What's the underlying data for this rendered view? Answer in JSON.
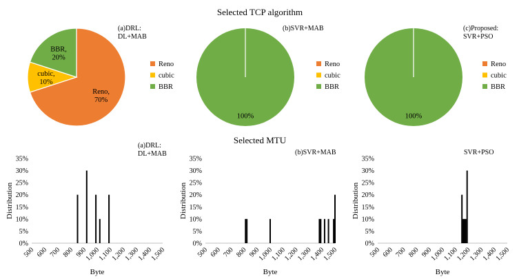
{
  "titles": {
    "top": "Selected TCP algorithm",
    "bottom": "Selected MTU"
  },
  "legend": {
    "entries": [
      {
        "name": "Reno",
        "color": "#ED7D31"
      },
      {
        "name": "cubic",
        "color": "#FFC000"
      },
      {
        "name": "BBR",
        "color": "#70AD47"
      }
    ]
  },
  "chart_data": [
    {
      "type": "pie",
      "annotation": [
        "(a)DRL:",
        "DL+MAB"
      ],
      "slices": [
        {
          "name": "Reno",
          "value": 70,
          "label": [
            "Reno,",
            "70%"
          ],
          "color": "#ED7D31"
        },
        {
          "name": "cubic",
          "value": 10,
          "label": [
            "cubic,",
            "10%"
          ],
          "color": "#FFC000"
        },
        {
          "name": "BBR",
          "value": 20,
          "label": [
            "BBR,",
            "20%"
          ],
          "color": "#70AD47"
        }
      ],
      "legend_position": "right"
    },
    {
      "type": "pie",
      "annotation": [
        "(b)SVR+MAB"
      ],
      "slices": [
        {
          "name": "Reno",
          "value": 0,
          "color": "#ED7D31"
        },
        {
          "name": "cubic",
          "value": 0,
          "color": "#FFC000"
        },
        {
          "name": "BBR",
          "value": 100,
          "label": [
            "100%"
          ],
          "color": "#70AD47"
        }
      ],
      "legend_position": "right"
    },
    {
      "type": "pie",
      "annotation": [
        "(c)Proposed:",
        "SVR+PSO"
      ],
      "slices": [
        {
          "name": "Reno",
          "value": 0,
          "color": "#ED7D31"
        },
        {
          "name": "cubic",
          "value": 0,
          "color": "#FFC000"
        },
        {
          "name": "BBR",
          "value": 100,
          "label": [
            "100%"
          ],
          "color": "#70AD47"
        }
      ],
      "legend_position": "right"
    },
    {
      "type": "bar",
      "annotation": [
        "(a)DRL:",
        "DL+MAB"
      ],
      "xlabel": "Byte",
      "ylabel": "Distribution",
      "xlim": [
        500,
        1500
      ],
      "ylim": [
        0,
        35
      ],
      "x_ticks": [
        "500",
        "600",
        "700",
        "800",
        "900",
        "1,000",
        "1,100",
        "1,200",
        "1,300",
        "1,400",
        "1,500"
      ],
      "y_ticks": [
        "0%",
        "5%",
        "10%",
        "15%",
        "20%",
        "25%",
        "30%",
        "35%"
      ],
      "bars": [
        {
          "x": 850,
          "value": 20
        },
        {
          "x": 920,
          "value": 30
        },
        {
          "x": 990,
          "value": 20
        },
        {
          "x": 1020,
          "value": 10
        },
        {
          "x": 1090,
          "value": 20
        }
      ]
    },
    {
      "type": "bar",
      "annotation": [
        "(b)SVR+MAB"
      ],
      "xlabel": "Byte",
      "ylabel": "Distribution",
      "xlim": [
        500,
        1500
      ],
      "ylim": [
        0,
        35
      ],
      "x_ticks": [
        "500",
        "600",
        "700",
        "800",
        "900",
        "1,000",
        "1,100",
        "1,200",
        "1,300",
        "1,400",
        "1,500"
      ],
      "y_ticks": [
        "0%",
        "5%",
        "10%",
        "15%",
        "20%",
        "25%",
        "30%",
        "35%"
      ],
      "bars": [
        {
          "x": 810,
          "value": 10
        },
        {
          "x": 820,
          "value": 10
        },
        {
          "x": 1000,
          "value": 10
        },
        {
          "x": 1380,
          "value": 10
        },
        {
          "x": 1390,
          "value": 10
        },
        {
          "x": 1420,
          "value": 10
        },
        {
          "x": 1450,
          "value": 10
        },
        {
          "x": 1490,
          "value": 10
        },
        {
          "x": 1500,
          "value": 20
        }
      ]
    },
    {
      "type": "bar",
      "annotation": [
        "SVR+PSO"
      ],
      "xlabel": "Byte",
      "ylabel": "Distribution",
      "xlim": [
        500,
        1500
      ],
      "ylim": [
        0,
        35
      ],
      "x_ticks": [
        "500",
        "600",
        "700",
        "800",
        "900",
        "1,000",
        "1,100",
        "1,200",
        "1,300",
        "1,400",
        "1,500"
      ],
      "y_ticks": [
        "0%",
        "5%",
        "10%",
        "15%",
        "20%",
        "25%",
        "30%",
        "35%"
      ],
      "bars": [
        {
          "x": 1150,
          "value": 20
        },
        {
          "x": 1160,
          "value": 10
        },
        {
          "x": 1170,
          "value": 10
        },
        {
          "x": 1180,
          "value": 10
        },
        {
          "x": 1190,
          "value": 30
        }
      ]
    }
  ]
}
